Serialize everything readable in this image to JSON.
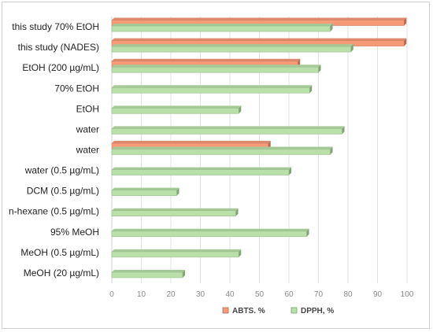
{
  "chart_data": {
    "type": "bar",
    "orientation": "horizontal",
    "categories": [
      "this study 70% EtOH",
      "this study (NADES)",
      "EtOH (200 µg/mL)",
      "70% EtOH",
      "EtOH",
      "water",
      "water",
      "water (0.5 µg/mL)",
      "DCM  (0.5 µg/mL)",
      "n-hexane  (0.5 µg/mL)",
      "95% MeOH",
      "MeOH  (0.5 µg/mL)",
      "MeOH  (20 µg/mL)"
    ],
    "series": [
      {
        "name": "ABTS. %",
        "color": "#f79a78",
        "values": [
          99,
          99,
          63,
          null,
          null,
          null,
          53,
          null,
          null,
          null,
          null,
          null,
          null
        ]
      },
      {
        "name": "DPPH, %",
        "color": "#b8e0a8",
        "values": [
          74,
          81,
          70,
          67,
          43,
          78,
          74,
          60,
          22,
          42,
          66,
          43,
          24
        ]
      }
    ],
    "xlim": [
      0,
      100
    ],
    "xticks": [
      0,
      10,
      20,
      30,
      40,
      50,
      60,
      70,
      80,
      90,
      100
    ],
    "grid": true,
    "legend_position": "bottom"
  }
}
